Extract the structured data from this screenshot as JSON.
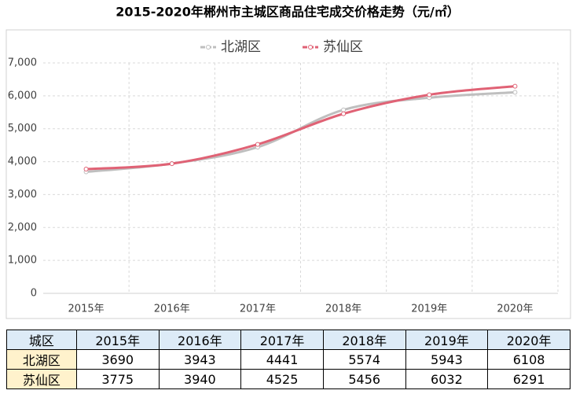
{
  "chart_data": {
    "type": "line",
    "title": "2015-2020年郴州市主城区商品住宅成交价格走势（元/㎡）",
    "categories": [
      "2015年",
      "2016年",
      "2017年",
      "2018年",
      "2019年",
      "2020年"
    ],
    "series": [
      {
        "name": "北湖区",
        "color": "#bfbfbf",
        "values": [
          3690,
          3943,
          4441,
          5574,
          5943,
          6108
        ]
      },
      {
        "name": "苏仙区",
        "color": "#e06275",
        "values": [
          3775,
          3940,
          4525,
          5456,
          6032,
          6291
        ]
      }
    ],
    "ylim": [
      0,
      7000
    ],
    "yticks": [
      0,
      {
        "value": 1000,
        "label": "1,000"
      },
      {
        "value": 2000,
        "label": "2,000"
      },
      {
        "value": 3000,
        "label": "3,000"
      },
      {
        "value": 4000,
        "label": "4,000"
      },
      {
        "value": 5000,
        "label": "5,000"
      },
      {
        "value": 6000,
        "label": "6,000"
      },
      {
        "value": 7000,
        "label": "7,000"
      }
    ],
    "grid": true,
    "smooth": true,
    "legend": "top"
  },
  "table": {
    "header": "城区"
  }
}
